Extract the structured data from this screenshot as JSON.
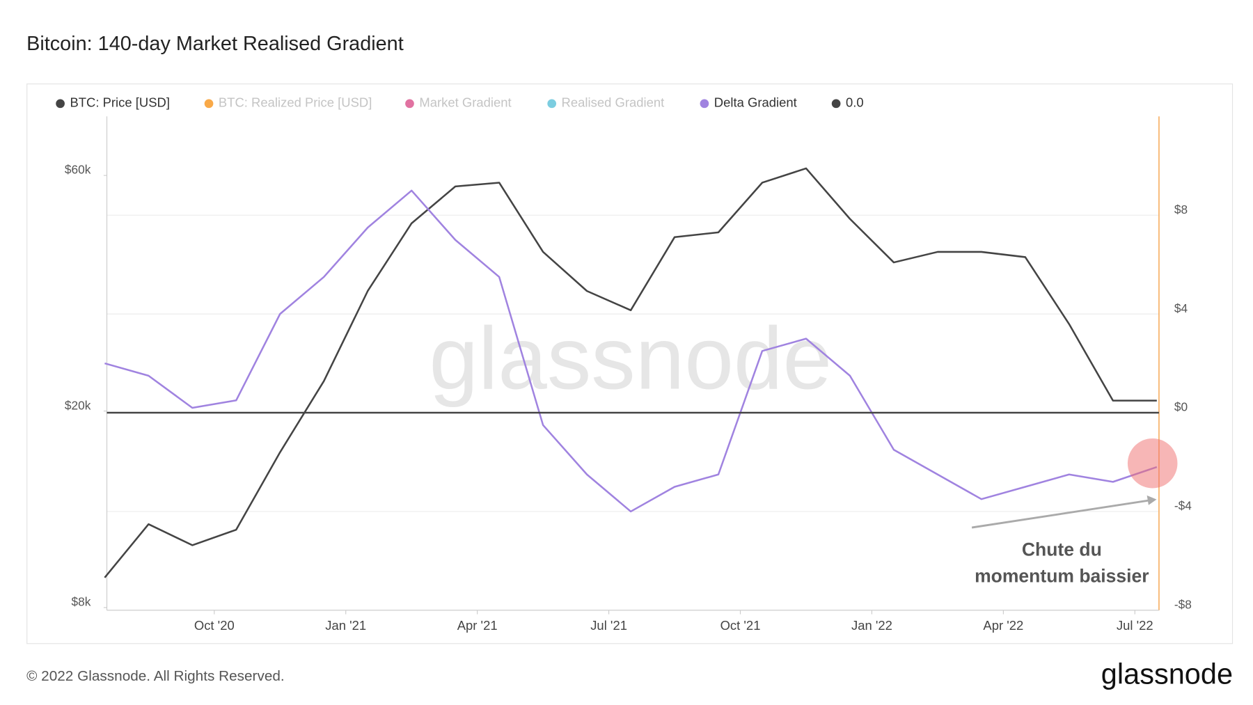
{
  "chart_data": {
    "type": "line",
    "title": "Bitcoin: 140-day Market Realised Gradient",
    "x": [
      "2020-07",
      "2020-08",
      "2020-09",
      "2020-10",
      "2020-11",
      "2020-12",
      "2021-01",
      "2021-02",
      "2021-03",
      "2021-04",
      "2021-05",
      "2021-06",
      "2021-07",
      "2021-08",
      "2021-09",
      "2021-10",
      "2021-11",
      "2021-12",
      "2022-01",
      "2022-02",
      "2022-03",
      "2022-04",
      "2022-05",
      "2022-06",
      "2022-07"
    ],
    "xlim": [
      "2020-07",
      "2022-07"
    ],
    "xticks": [
      {
        "value": "2020-10",
        "label": "Oct '20"
      },
      {
        "value": "2021-01",
        "label": "Jan '21"
      },
      {
        "value": "2021-04",
        "label": "Apr '21"
      },
      {
        "value": "2021-07",
        "label": "Jul '21"
      },
      {
        "value": "2021-10",
        "label": "Oct '21"
      },
      {
        "value": "2022-01",
        "label": "Jan '22"
      },
      {
        "value": "2022-04",
        "label": "Apr '22"
      },
      {
        "value": "2022-07",
        "label": "Jul '22"
      }
    ],
    "ylog": true,
    "ylim": [
      7900,
      79000
    ],
    "yticks": [
      {
        "value": 8000,
        "label": "$8k"
      },
      {
        "value": 20000,
        "label": "$20k"
      },
      {
        "value": 60000,
        "label": "$60k"
      }
    ],
    "y2lim": [
      -8,
      12
    ],
    "y2ticks": [
      {
        "value": -8,
        "label": "-$8"
      },
      {
        "value": -4,
        "label": "-$4"
      },
      {
        "value": 0,
        "label": "$0"
      },
      {
        "value": 4,
        "label": "$4"
      },
      {
        "value": 8,
        "label": "$8"
      }
    ],
    "grid": true,
    "legend": "top-left",
    "series": [
      {
        "name": "BTC: Price [USD]",
        "color": "#444444",
        "visible": true,
        "values": [
          9200,
          11800,
          10700,
          11500,
          16500,
          23000,
          35000,
          48000,
          57000,
          58000,
          42000,
          35000,
          32000,
          45000,
          46000,
          58000,
          62000,
          49000,
          40000,
          42000,
          42000,
          41000,
          30000,
          21000,
          21000
        ]
      },
      {
        "name": "BTC: Realized Price [USD]",
        "color": "#f7931a",
        "visible": false
      },
      {
        "name": "Market Gradient",
        "color": "#d94f8a",
        "visible": false
      },
      {
        "name": "Realised Gradient",
        "color": "#5bc0d8",
        "visible": false
      },
      {
        "name": "Delta Gradient",
        "color": "#a083e0",
        "visible": true,
        "axis": "y2",
        "values": [
          2.0,
          1.5,
          0.2,
          0.5,
          4.0,
          5.5,
          7.5,
          9.0,
          7.0,
          5.5,
          -0.5,
          -2.5,
          -4.0,
          -3.0,
          -2.5,
          2.5,
          3.0,
          1.5,
          -1.5,
          -2.5,
          -3.5,
          -3.0,
          -2.5,
          -2.8,
          -2.2
        ]
      },
      {
        "name": "0.0",
        "color": "#444444",
        "visible": true,
        "axis": "y2",
        "value": 0
      }
    ],
    "annotation": [
      "Chute du",
      "momentum baissier"
    ],
    "watermark": "glassnode",
    "footer": "© 2022 Glassnode. All Rights Reserved.",
    "logo": "glassnode"
  }
}
